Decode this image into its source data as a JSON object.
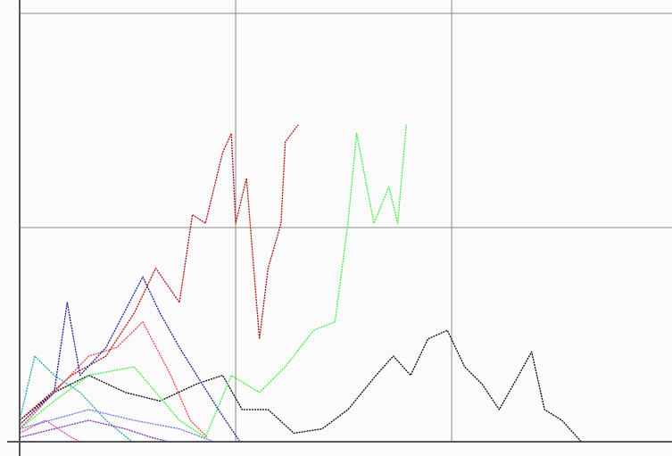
{
  "chart_data": {
    "type": "line",
    "xlim": [
      0,
      3.02
    ],
    "ylim": [
      0,
      2.0625
    ],
    "xticks": [
      0,
      1,
      2
    ],
    "yticks": [
      0,
      1,
      2
    ],
    "grid": true,
    "series": [
      {
        "color": "#000000",
        "x": [
          0,
          0.16,
          0.32,
          0.49,
          0.65,
          0.82,
          0.94,
          1.03,
          1.15,
          1.27,
          1.4,
          1.52,
          1.65,
          1.73,
          1.81,
          1.89,
          1.98,
          2.06,
          2.14,
          2.22,
          2.31,
          2.37,
          2.43,
          2.51,
          2.6
        ],
        "values": [
          0.1,
          0.23,
          0.31,
          0.23,
          0.19,
          0.27,
          0.31,
          0.15,
          0.15,
          0.04,
          0.06,
          0.15,
          0.31,
          0.4,
          0.31,
          0.48,
          0.52,
          0.35,
          0.27,
          0.15,
          0.31,
          0.42,
          0.15,
          0.1,
          0
        ]
      },
      {
        "color": "#44ee44",
        "x": [
          0,
          0.16,
          0.32,
          0.53,
          0.74,
          0.86,
          0.98,
          1.11,
          1.23,
          1.36,
          1.46,
          1.52,
          1.56,
          1.6,
          1.64,
          1.71,
          1.75,
          1.79
        ],
        "values": [
          0.06,
          0.19,
          0.31,
          0.35,
          0.1,
          0.02,
          0.31,
          0.23,
          0.35,
          0.52,
          0.56,
          1.02,
          1.44,
          1.23,
          1.02,
          1.19,
          1.02,
          1.48
        ]
      },
      {
        "color": "#aa1111",
        "x": [
          0,
          0.24,
          0.4,
          0.53,
          0.63,
          0.74,
          0.8,
          0.86,
          0.94,
          0.98,
          1,
          1.05,
          1.11,
          1.15,
          1.21,
          1.23,
          1.29
        ],
        "values": [
          0.1,
          0.31,
          0.4,
          0.6,
          0.81,
          0.65,
          1.06,
          1.02,
          1.35,
          1.44,
          1.02,
          1.23,
          0.48,
          0.81,
          1.02,
          1.4,
          1.48
        ]
      },
      {
        "color": "#ee4444",
        "x": [
          0,
          0.16,
          0.32,
          0.45,
          0.57,
          0.7,
          0.79,
          0.87
        ],
        "values": [
          0.06,
          0.23,
          0.4,
          0.44,
          0.56,
          0.31,
          0.1,
          0.02
        ]
      },
      {
        "color": "#1a1a99",
        "x": [
          0,
          0.16,
          0.22,
          0.28,
          0.4,
          0.57,
          0.65,
          0.74,
          0.82,
          0.92,
          1.02
        ],
        "values": [
          0.08,
          0.23,
          0.65,
          0.31,
          0.44,
          0.77,
          0.6,
          0.44,
          0.31,
          0.15,
          0
        ]
      },
      {
        "color": "#22aaaa",
        "x": [
          0,
          0.07,
          0.16,
          0.28,
          0.4,
          0.52
        ],
        "values": [
          0.1,
          0.4,
          0.31,
          0.23,
          0.1,
          0
        ]
      },
      {
        "color": "#7733aa",
        "x": [
          0,
          0.16,
          0.32,
          0.49,
          0.61,
          0.69
        ],
        "values": [
          0.02,
          0.06,
          0.1,
          0.06,
          0.02,
          0
        ]
      },
      {
        "color": "#dd44aa",
        "x": [
          0,
          0.12,
          0.24,
          0.28
        ],
        "values": [
          0.04,
          0.1,
          0.02,
          0
        ]
      },
      {
        "color": "#6677dd",
        "x": [
          0,
          0.32,
          0.53,
          0.74,
          0.9
        ],
        "values": [
          0.06,
          0.15,
          0.1,
          0.06,
          0
        ]
      }
    ]
  }
}
